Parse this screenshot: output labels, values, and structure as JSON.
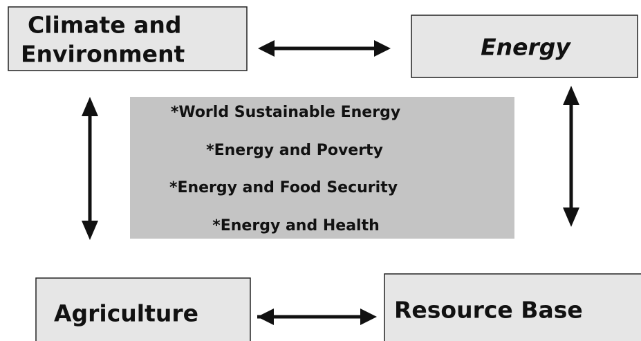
{
  "nodes": [
    {
      "label_lines": [
        "Climate and",
        "Environment"
      ]
    },
    {
      "label": "Energy"
    },
    {
      "label": "Agriculture"
    },
    {
      "label": "Resource Base"
    }
  ],
  "center": {
    "items": [
      "*World Sustainable Energy",
      "*Energy and Poverty",
      "*Energy and Food Security",
      "*Energy and Health"
    ]
  }
}
